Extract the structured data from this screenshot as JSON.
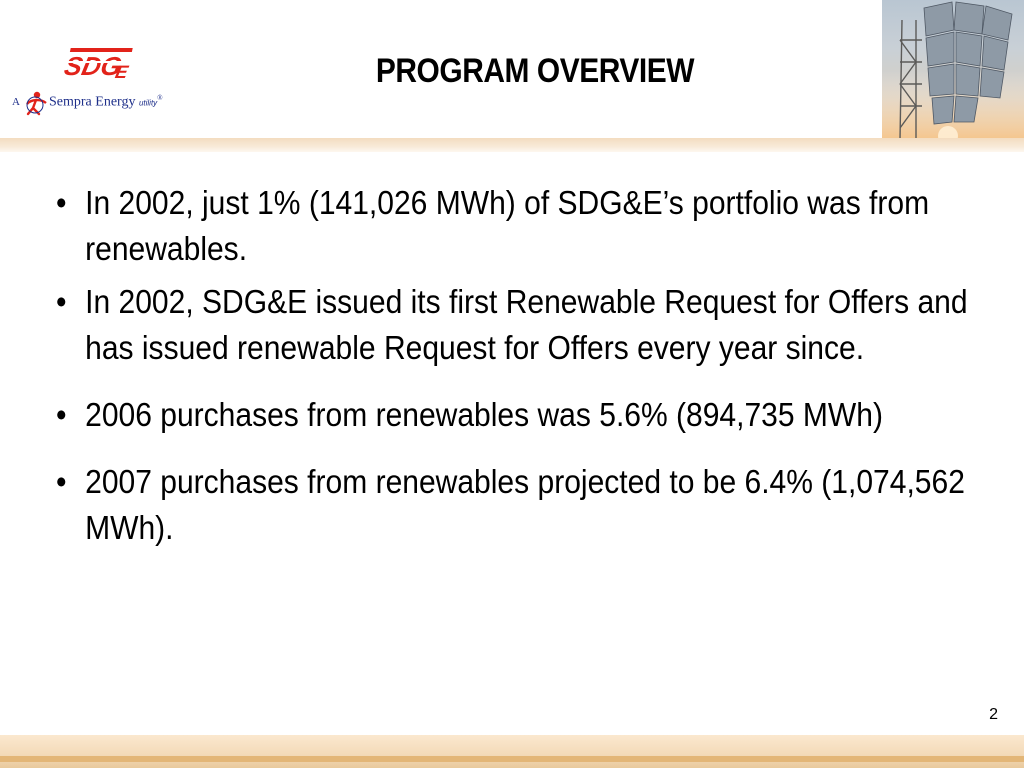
{
  "header": {
    "title": "PROGRAM OVERVIEW",
    "logo": {
      "brand": "SDGE",
      "tagline_prefix": "A",
      "tagline_company": "Sempra Energy",
      "tagline_suffix": "utility",
      "registered_mark": "®"
    },
    "photo": "solar-tower-photo"
  },
  "bullets": [
    "In 2002,  just 1% (141,026 MWh) of SDG&E’s portfolio was from renewables.",
    "In 2002, SDG&E issued its first Renewable Request for Offers and has issued renewable Request for Offers every year since.",
    "2006 purchases from renewables was 5.6% (894,735 MWh)",
    "2007 purchases from renewables projected to be 6.4% (1,074,562 MWh)."
  ],
  "footer": {
    "page_number": "2"
  },
  "colors": {
    "brand_red": "#e2231a",
    "brand_blue": "#1e2f8a",
    "band_tan": "#f3dab8"
  }
}
